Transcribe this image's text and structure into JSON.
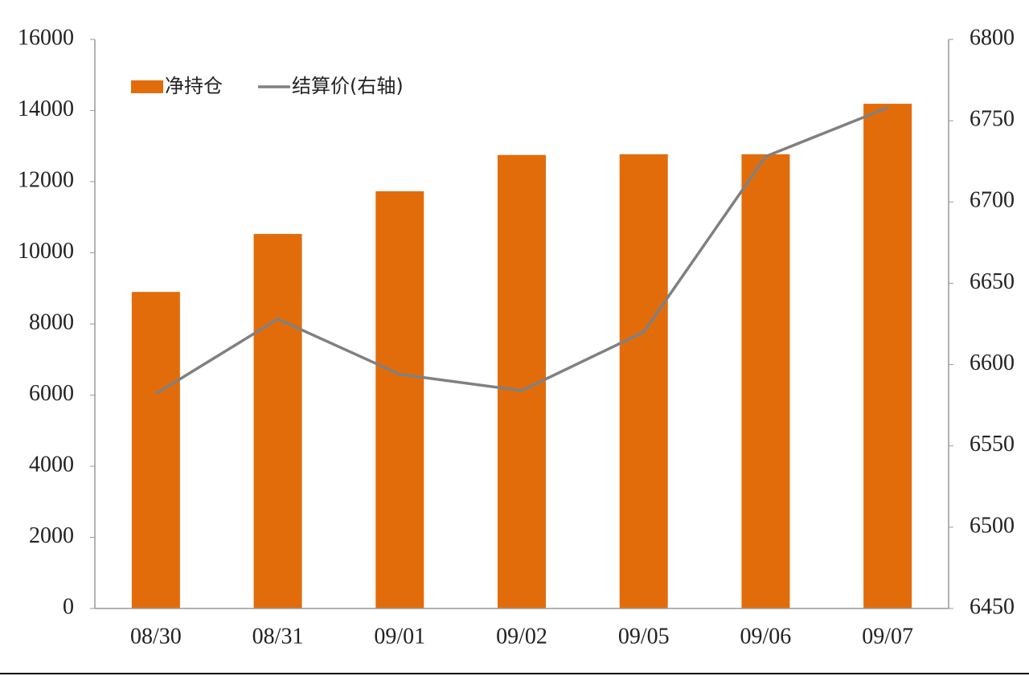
{
  "chart_data": {
    "type": "bar",
    "categories": [
      "08/30",
      "08/31",
      "09/01",
      "09/02",
      "09/05",
      "09/06",
      "09/07"
    ],
    "series": [
      {
        "name": "净持仓",
        "color": "#e36c0a",
        "values": [
          8900,
          10530,
          11730,
          12750,
          12770,
          12770,
          14190
        ]
      },
      {
        "name": "结算价(右轴)",
        "type": "line",
        "axis": "y2",
        "color": "#808080",
        "values": [
          6582,
          6628,
          6594,
          6584,
          6620,
          6728,
          6758
        ]
      }
    ],
    "ylim": [
      0,
      16000
    ],
    "yticks": [
      0,
      2000,
      4000,
      6000,
      8000,
      10000,
      12000,
      14000,
      16000
    ],
    "y2lim": [
      6450,
      6800
    ],
    "y2ticks": [
      6450,
      6500,
      6550,
      6600,
      6650,
      6700,
      6750,
      6800
    ],
    "grid": false,
    "legend": "top-left"
  }
}
